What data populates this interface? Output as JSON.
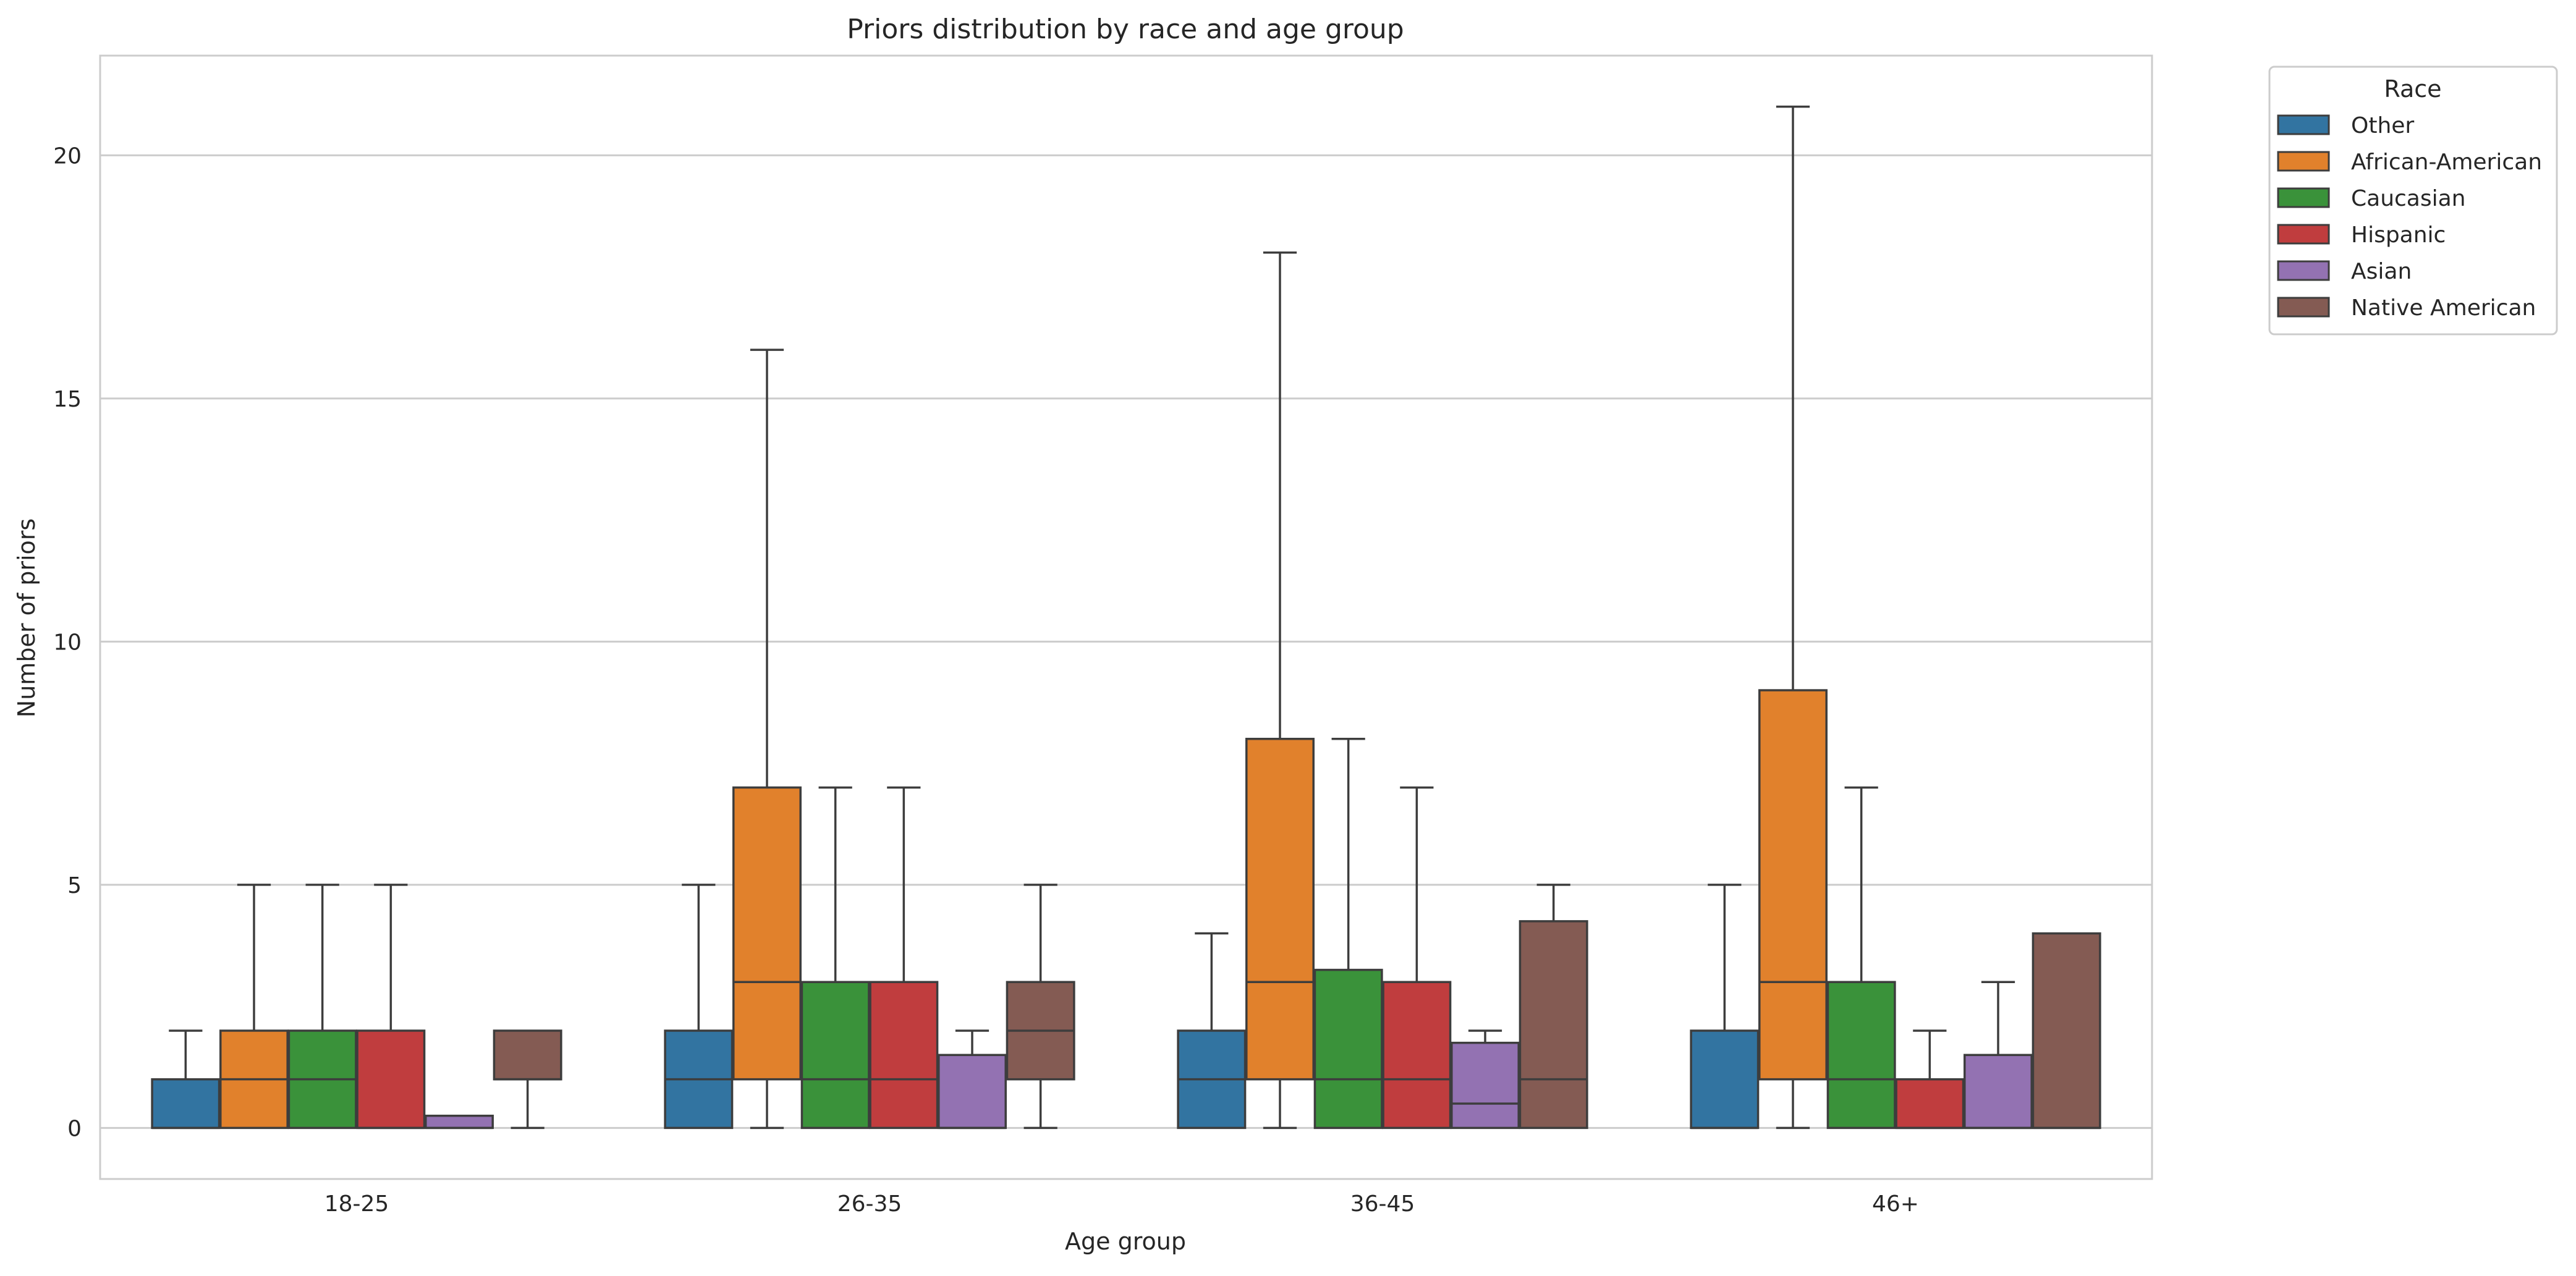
{
  "chart_data": {
    "type": "box",
    "title": "Priors distribution by race and age group",
    "xlabel": "Age group",
    "ylabel": "Number of priors",
    "ylim": [
      -1.05,
      22.05
    ],
    "yticks": [
      0,
      5,
      10,
      15,
      20
    ],
    "grid": true,
    "legend": {
      "title": "Race",
      "placement": "outside-top-right"
    },
    "categories": [
      "18-25",
      "26-35",
      "36-45",
      "46+"
    ],
    "series": [
      {
        "name": "Other",
        "color": "#3274a1",
        "boxes": [
          {
            "whislo": 0,
            "q1": 0,
            "med": 0,
            "q3": 1,
            "whishi": 2
          },
          {
            "whislo": 0,
            "q1": 0,
            "med": 1,
            "q3": 2,
            "whishi": 5
          },
          {
            "whislo": 0,
            "q1": 0,
            "med": 1,
            "q3": 2,
            "whishi": 4
          },
          {
            "whislo": 0,
            "q1": 0,
            "med": 0,
            "q3": 2,
            "whishi": 5
          }
        ]
      },
      {
        "name": "African-American",
        "color": "#e1812c",
        "boxes": [
          {
            "whislo": 0,
            "q1": 0,
            "med": 1,
            "q3": 2,
            "whishi": 5
          },
          {
            "whislo": 0,
            "q1": 1,
            "med": 3,
            "q3": 7,
            "whishi": 16
          },
          {
            "whislo": 0,
            "q1": 1,
            "med": 3,
            "q3": 8,
            "whishi": 18
          },
          {
            "whislo": 0,
            "q1": 1,
            "med": 3,
            "q3": 9,
            "whishi": 21
          }
        ]
      },
      {
        "name": "Caucasian",
        "color": "#3a923a",
        "boxes": [
          {
            "whislo": 0,
            "q1": 0,
            "med": 1,
            "q3": 2,
            "whishi": 5
          },
          {
            "whislo": 0,
            "q1": 0,
            "med": 1,
            "q3": 3,
            "whishi": 7
          },
          {
            "whislo": 0,
            "q1": 0,
            "med": 1,
            "q3": 3.25,
            "whishi": 8
          },
          {
            "whislo": 0,
            "q1": 0,
            "med": 1,
            "q3": 3,
            "whishi": 7
          }
        ]
      },
      {
        "name": "Hispanic",
        "color": "#c03d3e",
        "boxes": [
          {
            "whislo": 0,
            "q1": 0,
            "med": 0,
            "q3": 2,
            "whishi": 5
          },
          {
            "whislo": 0,
            "q1": 0,
            "med": 1,
            "q3": 3,
            "whishi": 7
          },
          {
            "whislo": 0,
            "q1": 0,
            "med": 1,
            "q3": 3,
            "whishi": 7
          },
          {
            "whislo": 0,
            "q1": 0,
            "med": 0,
            "q3": 1,
            "whishi": 2
          }
        ]
      },
      {
        "name": "Asian",
        "color": "#9372b2",
        "boxes": [
          {
            "whislo": 0,
            "q1": 0,
            "med": 0,
            "q3": 0.25,
            "whishi": 0.25
          },
          {
            "whislo": 0,
            "q1": 0,
            "med": 0,
            "q3": 1.5,
            "whishi": 2
          },
          {
            "whislo": 0,
            "q1": 0,
            "med": 0.5,
            "q3": 1.75,
            "whishi": 2
          },
          {
            "whislo": 0,
            "q1": 0,
            "med": 0,
            "q3": 1.5,
            "whishi": 3
          }
        ]
      },
      {
        "name": "Native American",
        "color": "#845b53",
        "boxes": [
          {
            "whislo": 0,
            "q1": 1,
            "med": 1,
            "q3": 2,
            "whishi": 2
          },
          {
            "whislo": 0,
            "q1": 1,
            "med": 2,
            "q3": 3,
            "whishi": 5
          },
          {
            "whislo": 0,
            "q1": 0,
            "med": 1,
            "q3": 4.25,
            "whishi": 5
          },
          {
            "whislo": 0,
            "q1": 0,
            "med": 0,
            "q3": 4,
            "whishi": 4
          }
        ]
      }
    ]
  }
}
